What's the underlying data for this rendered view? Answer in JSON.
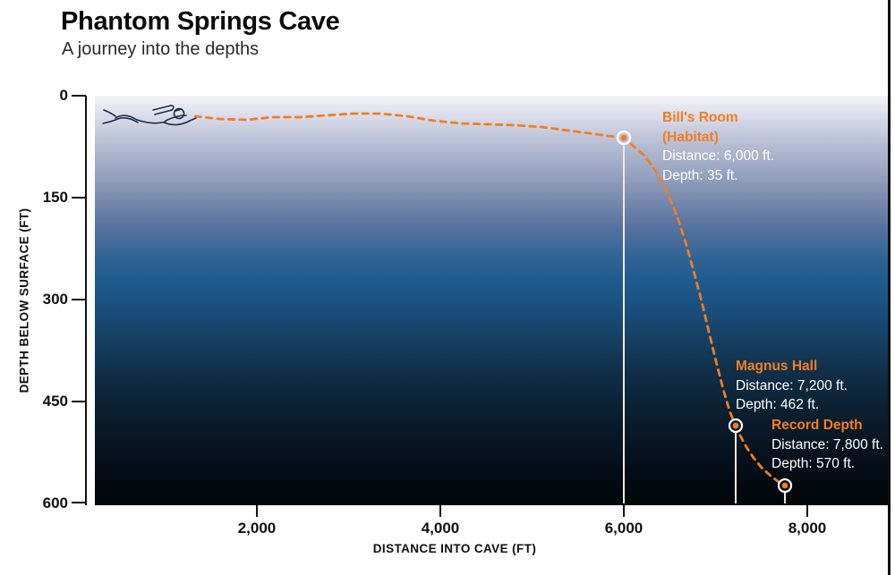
{
  "header": {
    "title": "Phantom Springs Cave",
    "subtitle": "A journey into the depths"
  },
  "axes": {
    "y_label": "DEPTH BELOW SURFACE (FT)",
    "x_label": "DISTANCE INTO CAVE (FT)",
    "y_ticks": [
      "0",
      "150",
      "300",
      "450",
      "600"
    ],
    "x_ticks": [
      "2,000",
      "4,000",
      "6,000",
      "8,000"
    ]
  },
  "annotations": [
    {
      "title": "Bill's Room (Habitat)",
      "distance": "Distance: 6,000 ft.",
      "depth": "Depth: 35 ft."
    },
    {
      "title": "Magnus Hall",
      "distance": "Distance: 7,200 ft.",
      "depth": "Depth: 462 ft."
    },
    {
      "title": "Record Depth",
      "distance": "Distance: 7,800 ft.",
      "depth": "Depth: 570 ft."
    }
  ],
  "colors": {
    "accent_orange": "#F47D20",
    "annotation_text": "#FFFFFF",
    "axis_ink": "#101010",
    "drop_line": "#ECEAE2",
    "surface_gradient_top": "#F4F4F8",
    "abyss_gradient_bottom": "#020609"
  },
  "chart_data": {
    "type": "line",
    "title": "Phantom Springs Cave",
    "subtitle": "A journey into the depths",
    "xlabel": "DISTANCE INTO CAVE (FT)",
    "ylabel": "DEPTH BELOW SURFACE (FT)",
    "x_ticks": [
      2000,
      4000,
      6000,
      8000
    ],
    "y_ticks": [
      0,
      150,
      300,
      450,
      600
    ],
    "xlim": [
      0,
      8900
    ],
    "ylim": [
      0,
      600
    ],
    "y_axis_inverted": true,
    "grid": false,
    "line_style": "dashed",
    "series": [
      {
        "name": "dive-profile",
        "color": "#F47D20",
        "points_distance_depth_ft": [
          [
            1300,
            30
          ],
          [
            1800,
            35
          ],
          [
            2400,
            33
          ],
          [
            3000,
            28
          ],
          [
            3500,
            27
          ],
          [
            4000,
            30
          ],
          [
            4500,
            40
          ],
          [
            5000,
            44
          ],
          [
            5500,
            48
          ],
          [
            5800,
            57
          ],
          [
            6000,
            35
          ],
          [
            6200,
            90
          ],
          [
            6500,
            200
          ],
          [
            6800,
            320
          ],
          [
            7000,
            410
          ],
          [
            7200,
            462
          ],
          [
            7400,
            505
          ],
          [
            7600,
            540
          ],
          [
            7800,
            570
          ]
        ]
      }
    ],
    "annotations": [
      {
        "name": "Bill's Room (Habitat)",
        "distance_ft": 6000,
        "depth_ft": 35
      },
      {
        "name": "Magnus Hall",
        "distance_ft": 7200,
        "depth_ft": 462
      },
      {
        "name": "Record Depth",
        "distance_ft": 7800,
        "depth_ft": 570
      }
    ]
  },
  "geometry": {
    "baseline_y": 563,
    "path_segments": [
      [
        [
          218,
          130
        ],
        [
          245,
          133
        ],
        [
          275,
          134
        ],
        [
          305,
          131
        ],
        [
          335,
          131
        ],
        [
          365,
          129
        ],
        [
          395,
          127
        ],
        [
          425,
          127
        ],
        [
          455,
          130
        ],
        [
          485,
          135
        ],
        [
          515,
          138
        ],
        [
          545,
          139
        ],
        [
          575,
          140
        ],
        [
          605,
          142
        ],
        [
          635,
          146
        ],
        [
          665,
          150
        ],
        [
          687,
          153
        ]
      ],
      [
        [
          705,
          161
        ],
        [
          720,
          174
        ],
        [
          734,
          193
        ],
        [
          746,
          216
        ],
        [
          757,
          243
        ],
        [
          766,
          271
        ],
        [
          775,
          303
        ],
        [
          784,
          337
        ],
        [
          792,
          371
        ],
        [
          800,
          404
        ],
        [
          808,
          435
        ],
        [
          815,
          459
        ],
        [
          819,
          469
        ]
      ],
      [
        [
          827,
          487
        ],
        [
          834,
          500
        ],
        [
          842,
          512
        ],
        [
          851,
          523
        ],
        [
          861,
          532
        ],
        [
          870,
          539
        ]
      ]
    ],
    "markers": [
      {
        "x": 697,
        "y": 154
      },
      {
        "x": 822,
        "y": 476
      },
      {
        "x": 877,
        "y": 543
      }
    ]
  }
}
